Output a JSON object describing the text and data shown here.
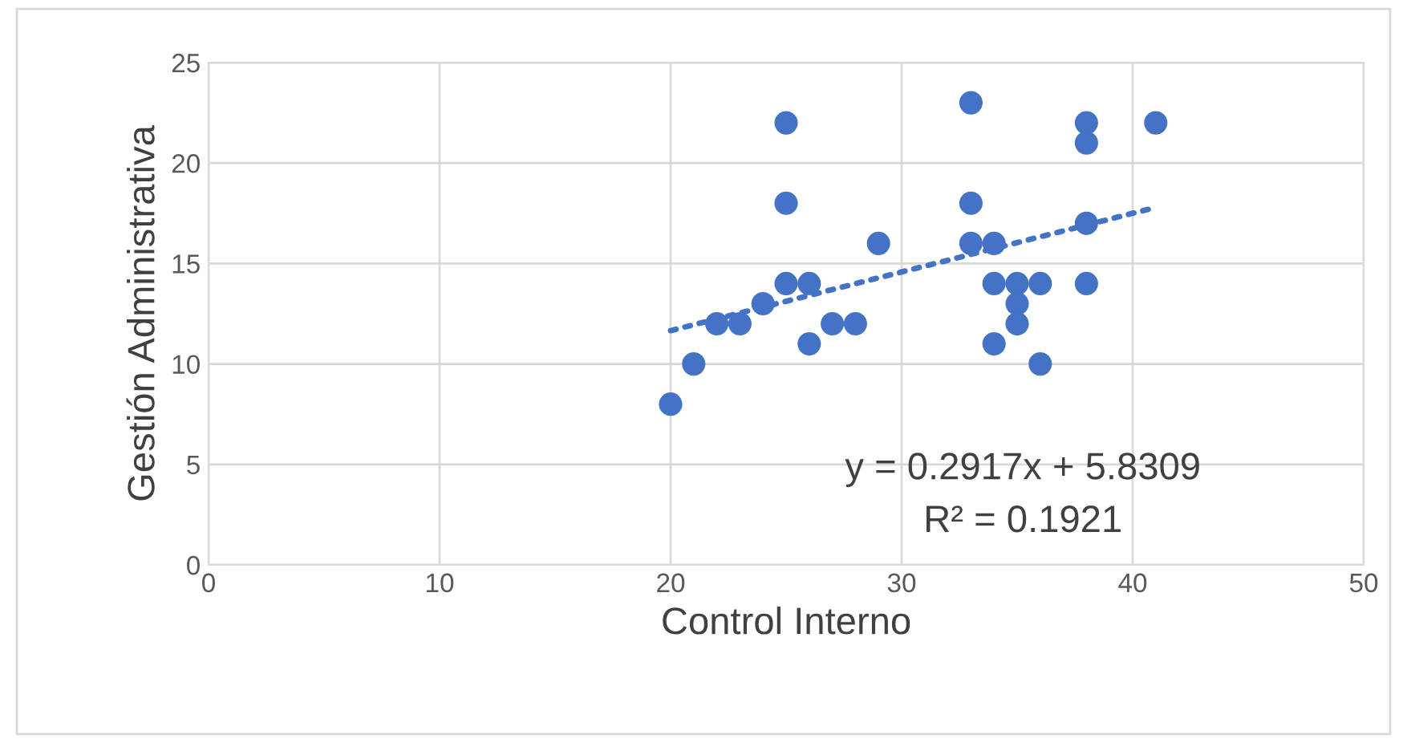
{
  "chart_data": {
    "type": "scatter",
    "xlabel": "Control Interno",
    "ylabel": "Gestión Administrativa",
    "xlim": [
      0,
      50
    ],
    "xticks": [
      0,
      10,
      20,
      30,
      40,
      50
    ],
    "ylim": [
      0,
      25
    ],
    "yticks": [
      0,
      5,
      10,
      15,
      20,
      25
    ],
    "grid": true,
    "series": [
      {
        "marker": "circle",
        "color": "#4472c4",
        "x": [
          20,
          21,
          22,
          23,
          24,
          25,
          25,
          25,
          26,
          26,
          27,
          28,
          29,
          33,
          33,
          33,
          34,
          34,
          34,
          35,
          35,
          35,
          36,
          36,
          38,
          38,
          38,
          38,
          41
        ],
        "values": [
          8,
          10,
          12,
          12,
          13,
          22,
          18,
          14,
          14,
          11,
          12,
          12,
          16,
          23,
          18,
          16,
          16,
          14,
          11,
          14,
          13,
          12,
          14,
          10,
          22,
          21,
          17,
          14,
          22
        ]
      },
      {
        "type": "line",
        "marker": "none",
        "color": "#4472c4",
        "line_style": "dotted",
        "x": [
          20,
          41
        ],
        "values": [
          11.66,
          17.79
        ]
      }
    ],
    "annotations": [
      "y = 0.2917x + 5.8309",
      "R² = 0.1921"
    ]
  }
}
